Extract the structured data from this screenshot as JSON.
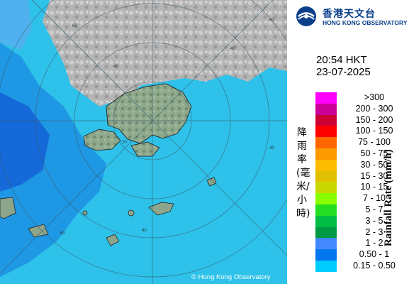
{
  "branding": {
    "name_zh": "香港天文台",
    "name_en": "HONG KONG OBSERVATORY"
  },
  "timestamp": {
    "time": "20:54 HKT",
    "date": "23-07-2025"
  },
  "map": {
    "range_ring_labels": [
      "60",
      "40",
      "20",
      "40",
      "60",
      "40",
      "60",
      "40"
    ],
    "copyright": "© Hong Kong Observatory",
    "colors": {
      "sea": "#2ec1e9",
      "land": "#8da58a",
      "mainland": "#a9a9a9"
    }
  },
  "legend": {
    "title_zh": "降雨率(毫米/小時)",
    "title_en": "Rainfall Rate (mm/h)",
    "items": [
      {
        "label": ">300",
        "color": "#ff00ff"
      },
      {
        "label": "200 - 300",
        "color": "#cc0099"
      },
      {
        "label": "150 - 200",
        "color": "#cc0033"
      },
      {
        "label": "100 - 150",
        "color": "#ff0000"
      },
      {
        "label": "75 - 100",
        "color": "#ff6600"
      },
      {
        "label": "50 - 75",
        "color": "#ff9900"
      },
      {
        "label": "30 - 50",
        "color": "#ffbb00"
      },
      {
        "label": "15 - 30",
        "color": "#e0c000"
      },
      {
        "label": "10 - 15",
        "color": "#c8d800"
      },
      {
        "label": "7 - 10",
        "color": "#88ff00"
      },
      {
        "label": "5 - 7",
        "color": "#22dd22"
      },
      {
        "label": "3 - 5",
        "color": "#00bb44"
      },
      {
        "label": "2 - 3",
        "color": "#009944"
      },
      {
        "label": "1 - 2",
        "color": "#4488ff"
      },
      {
        "label": "0.50 - 1",
        "color": "#0077ee"
      },
      {
        "label": "0.15 - 0.50",
        "color": "#00ccff"
      }
    ]
  }
}
